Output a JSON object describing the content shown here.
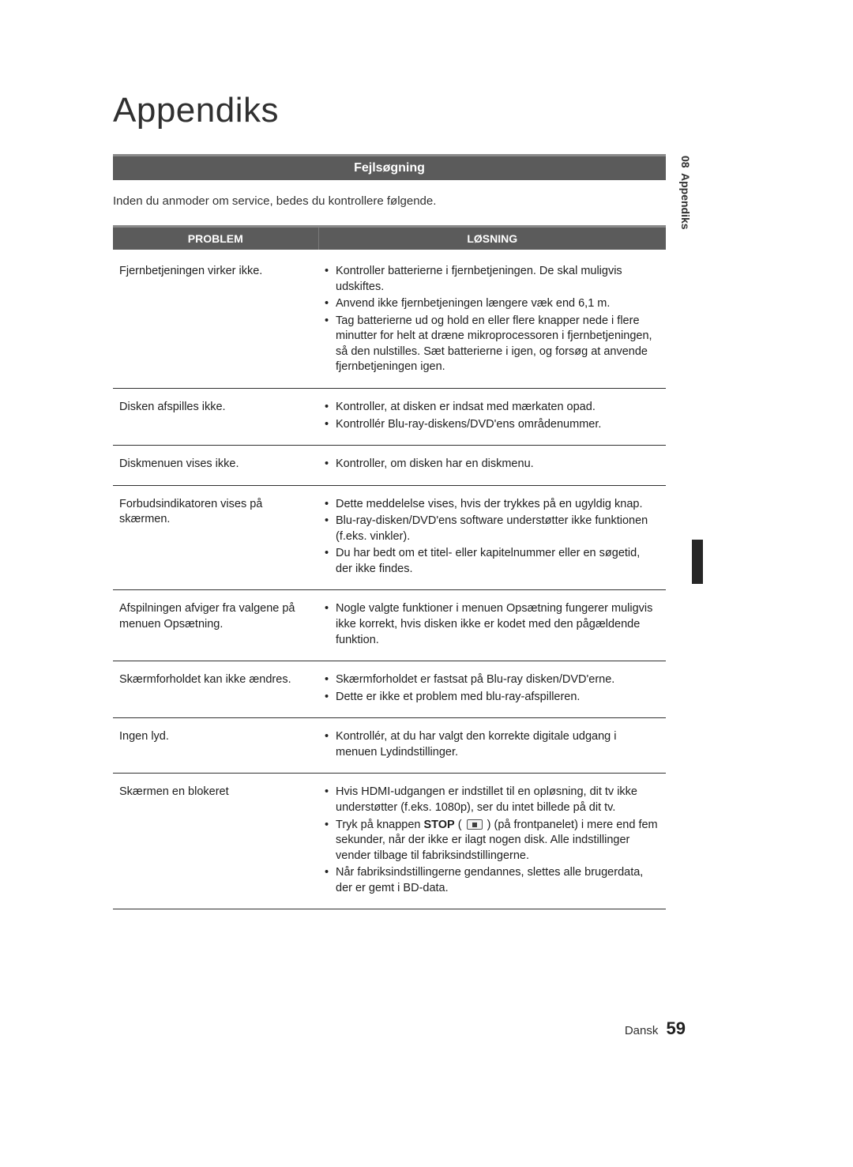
{
  "title": "Appendiks",
  "sectionHeader": "Fejlsøgning",
  "introText": "Inden du anmoder om service, bedes du kontrollere følgende.",
  "tableHeaders": {
    "problem": "PROBLEM",
    "solution": "LØSNING"
  },
  "sideTab": {
    "number": "08",
    "label": "Appendiks"
  },
  "footer": {
    "language": "Dansk",
    "pageNumber": "59"
  },
  "rows": [
    {
      "problem": "Fjernbetjeningen virker ikke.",
      "solutions": [
        "Kontroller batterierne i fjernbetjeningen. De skal muligvis udskiftes.",
        "Anvend ikke fjernbetjeningen længere væk end 6,1 m.",
        "Tag batterierne ud og hold en eller flere knapper nede i flere minutter for helt at dræne mikroprocessoren i fjernbetjeningen, så den nulstilles. Sæt batterierne i igen, og forsøg at anvende fjernbetjeningen igen."
      ]
    },
    {
      "problem": "Disken afspilles ikke.",
      "solutions": [
        "Kontroller, at disken er indsat med mærkaten opad.",
        "Kontrollér Blu-ray-diskens/DVD'ens områdenummer."
      ]
    },
    {
      "problem": "Diskmenuen vises ikke.",
      "solutions": [
        "Kontroller, om disken har en diskmenu."
      ]
    },
    {
      "problem": "Forbudsindikatoren vises på skærmen.",
      "solutions": [
        "Dette meddelelse vises, hvis der trykkes på en ugyldig knap.",
        "Blu-ray-disken/DVD'ens software understøtter ikke funktionen (f.eks. vinkler).",
        "Du har bedt om et titel- eller kapitelnummer eller en søgetid, der ikke findes."
      ]
    },
    {
      "problem": "Afspilningen afviger fra valgene på menuen Opsætning.",
      "solutions": [
        "Nogle valgte funktioner i menuen Opsætning fungerer muligvis ikke korrekt, hvis disken ikke er kodet med den pågældende funktion."
      ]
    },
    {
      "problem": "Skærmforholdet kan ikke ændres.",
      "solutions": [
        "Skærmforholdet er fastsat på Blu-ray disken/DVD'erne.",
        "Dette er ikke et problem med blu-ray-afspilleren."
      ]
    },
    {
      "problem": "Ingen lyd.",
      "solutions": [
        "Kontrollér, at du har valgt den korrekte digitale udgang i menuen Lydindstillinger."
      ]
    },
    {
      "problem": "Skærmen en blokeret",
      "solutions": [
        "Hvis HDMI-udgangen er indstillet til en opløsning, dit tv ikke understøtter (f.eks. 1080p), ser du intet billede på dit tv.",
        {
          "prefix": "Tryk på knappen ",
          "bold": "STOP",
          "iconAfterBold": true,
          "suffix": " (på frontpanelet) i mere end fem sekunder, når der ikke er ilagt nogen disk. Alle indstillinger vender tilbage til fabriksindstillingerne."
        },
        "Når fabriksindstillingerne gendannes, slettes alle brugerdata, der er gemt i BD-data."
      ]
    }
  ],
  "colors": {
    "headerBg": "#5b5b5b",
    "headerText": "#ffffff",
    "borderTop": "#8a8a8a",
    "bodyText": "#202020",
    "rowBorder": "#303030",
    "sidebarDark": "#262626"
  }
}
